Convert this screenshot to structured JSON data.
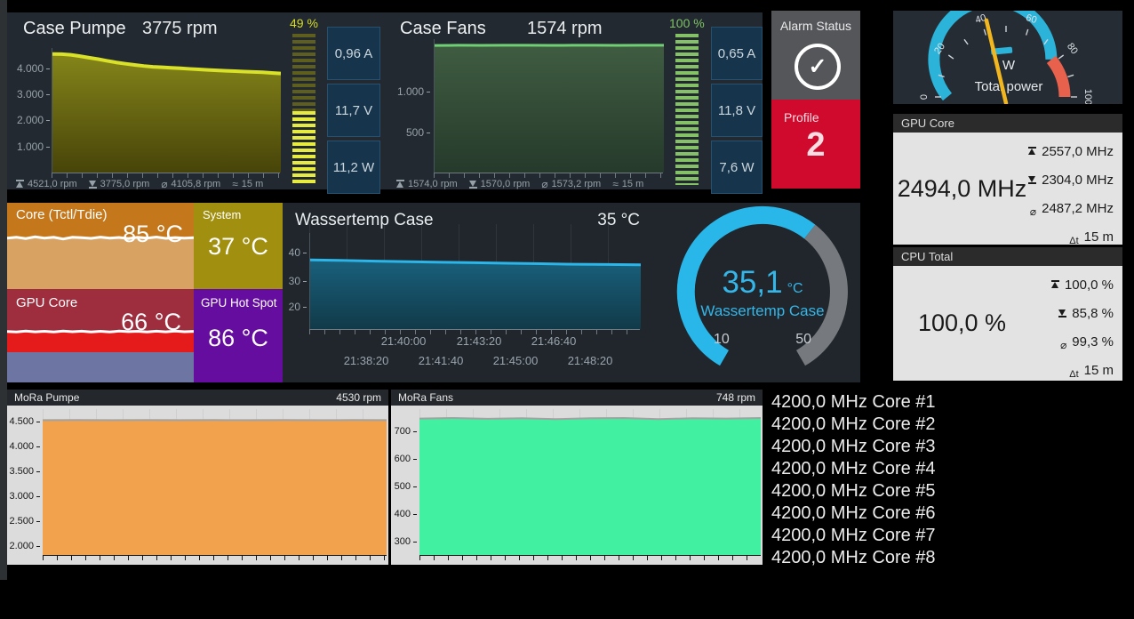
{
  "top": {
    "case_pumpe": {
      "title": "Case Pumpe",
      "value": "3775 rpm",
      "y_ticks": [
        "4.000",
        "3.000",
        "2.000",
        "1.000"
      ],
      "stats": [
        {
          "icon": "max-icon",
          "v": "4521,0 rpm"
        },
        {
          "icon": "min-icon",
          "v": "3775,0 rpm"
        },
        {
          "icon": "avg-icon",
          "v": "4105,8 rpm"
        },
        {
          "icon": "time-icon",
          "v": "15 m"
        }
      ]
    },
    "pumpe_gauge": {
      "label": "49 %",
      "percent": 49,
      "color": "#d6de1f"
    },
    "pumpe_boxes": [
      "0,96 A",
      "11,7 V",
      "11,2 W"
    ],
    "case_fans": {
      "title": "Case Fans",
      "value": "1574 rpm",
      "y_ticks": [
        "1.000",
        "500"
      ],
      "stats": [
        {
          "icon": "max-icon",
          "v": "1574,0 rpm"
        },
        {
          "icon": "min-icon",
          "v": "1570,0 rpm"
        },
        {
          "icon": "avg-icon",
          "v": "1573,2 rpm"
        },
        {
          "icon": "time-icon",
          "v": "15 m"
        }
      ]
    },
    "fans_gauge": {
      "label": "100 %",
      "percent": 100,
      "color": "#7fc465"
    },
    "fans_boxes": [
      "0,65 A",
      "11,8 V",
      "7,6 W"
    ],
    "alarm": {
      "title": "Alarm Status",
      "icon": "check-circle-icon"
    },
    "profile": {
      "label": "Profile",
      "value": "2",
      "color": "#d00a2d"
    }
  },
  "middle": {
    "tiles": {
      "core": {
        "title": "Core (Tctl/Tdie)",
        "value": "85 °C"
      },
      "system": {
        "title": "System",
        "value": "37 °C"
      },
      "gpu": {
        "title": "GPU Core",
        "value": "66 °C"
      },
      "hotspot": {
        "title": "GPU Hot Spot",
        "value": "86 °C"
      }
    },
    "wassertemp": {
      "title": "Wassertemp Case",
      "value": "35 °C",
      "y_ticks": [
        "40",
        "30",
        "20"
      ],
      "x_row1": [
        "21:40:00",
        "21:43:20",
        "21:46:40"
      ],
      "x_row2": [
        "21:38:20",
        "21:41:40",
        "21:45:00",
        "21:48:20"
      ]
    },
    "radial_gauge": {
      "value": "35,1",
      "unit": "°C",
      "label": "Wassertemp Case",
      "min": "10",
      "max": "50",
      "value_num": 35.1,
      "min_num": 10,
      "max_num": 50,
      "arc_color": "#29b7ea",
      "track_color": "#76797d"
    }
  },
  "right": {
    "power_gauge": {
      "unit": "W",
      "label": "Total power",
      "ticks": [
        "0",
        "20",
        "40",
        "60",
        "80",
        "100"
      ],
      "min": 0,
      "max": 100,
      "needle": 42,
      "redline_from": 78,
      "marker": 47,
      "arc_color": "#2bb3d9",
      "redline_color": "#e8614d",
      "needle_color": "#f2b71e"
    },
    "gpu_core": {
      "header": "GPU Core",
      "value": "2494,0 MHz",
      "stats": [
        {
          "icon": "max-icon",
          "v": "2557,0 MHz"
        },
        {
          "icon": "min-icon",
          "v": "2304,0 MHz"
        },
        {
          "icon": "avg-icon",
          "v": "2487,2 MHz"
        },
        {
          "icon": "time-icon",
          "v": "15 m"
        }
      ]
    },
    "cpu_total": {
      "header": "CPU Total",
      "value": "100,0 %",
      "stats": [
        {
          "icon": "max-icon",
          "v": "100,0 %"
        },
        {
          "icon": "min-icon",
          "v": "85,8 %"
        },
        {
          "icon": "avg-icon",
          "v": "99,3 %"
        },
        {
          "icon": "time-icon",
          "v": "15 m"
        }
      ]
    }
  },
  "bottom": {
    "mora_pumpe": {
      "header": "MoRa Pumpe",
      "value": "4530 rpm",
      "y_ticks": [
        "4.500",
        "4.000",
        "3.500",
        "3.000",
        "2.500",
        "2.000"
      ]
    },
    "mora_fans": {
      "header": "MoRa Fans",
      "value": "748 rpm",
      "y_ticks": [
        "700",
        "600",
        "500",
        "400",
        "300"
      ]
    },
    "core_list": [
      "4200,0 MHz Core #1",
      "4200,0 MHz Core #2",
      "4200,0 MHz Core #3",
      "4200,0 MHz Core #4",
      "4200,0 MHz Core #5",
      "4200,0 MHz Core #6",
      "4200,0 MHz Core #7",
      "4200,0 MHz Core #8"
    ]
  },
  "charts": {
    "case_pumpe": {
      "ymin": 0,
      "ymax": 4750,
      "line": "#d9e129",
      "line_width": 4,
      "fill_top": "#85851a",
      "fill_bottom": "#474409",
      "points": [
        [
          0,
          4520
        ],
        [
          4,
          4515
        ],
        [
          8,
          4490
        ],
        [
          12,
          4440
        ],
        [
          16,
          4380
        ],
        [
          20,
          4325
        ],
        [
          24,
          4260
        ],
        [
          28,
          4200
        ],
        [
          32,
          4150
        ],
        [
          36,
          4105
        ],
        [
          40,
          4065
        ],
        [
          44,
          4035
        ],
        [
          48,
          4015
        ],
        [
          52,
          3995
        ],
        [
          56,
          3978
        ],
        [
          60,
          3955
        ],
        [
          64,
          3935
        ],
        [
          68,
          3915
        ],
        [
          72,
          3898
        ],
        [
          76,
          3882
        ],
        [
          80,
          3868
        ],
        [
          84,
          3852
        ],
        [
          88,
          3840
        ],
        [
          92,
          3825
        ],
        [
          96,
          3800
        ],
        [
          100,
          3780
        ]
      ]
    },
    "case_fans": {
      "ymin": 0,
      "ymax": 1650,
      "line": "#70cf74",
      "line_width": 3,
      "fill_top": "#3f5c41",
      "fill_bottom": "#263a2b",
      "points": [
        [
          0,
          1572
        ],
        [
          10,
          1574
        ],
        [
          20,
          1573
        ],
        [
          30,
          1574
        ],
        [
          40,
          1574
        ],
        [
          50,
          1573
        ],
        [
          60,
          1574
        ],
        [
          70,
          1574
        ],
        [
          80,
          1573
        ],
        [
          90,
          1574
        ],
        [
          100,
          1574
        ]
      ]
    },
    "wassertemp": {
      "ymin": 10,
      "ymax": 47.5,
      "line": "#2cb5e8",
      "line_width": 3,
      "fill_top": "#19607c",
      "fill_bottom": "#113a49",
      "points": [
        [
          0,
          37
        ],
        [
          10,
          36.8
        ],
        [
          20,
          36.5
        ],
        [
          30,
          36.3
        ],
        [
          40,
          36.1
        ],
        [
          50,
          35.9
        ],
        [
          60,
          35.7
        ],
        [
          70,
          35.5
        ],
        [
          80,
          35.3
        ],
        [
          90,
          35.2
        ],
        [
          100,
          35.1
        ]
      ]
    },
    "core_wave": {
      "ymin": 0,
      "ymax": 100,
      "line": "#ffffff",
      "line_width": 3,
      "fill_top": "#d8a262",
      "fill_bottom": "#d8a262",
      "points": [
        [
          0,
          59
        ],
        [
          5,
          60
        ],
        [
          10,
          58.5
        ],
        [
          15,
          60.5
        ],
        [
          20,
          59
        ],
        [
          25,
          60
        ],
        [
          30,
          58
        ],
        [
          35,
          60
        ],
        [
          40,
          59.5
        ],
        [
          45,
          58.8
        ],
        [
          50,
          60.2
        ],
        [
          55,
          59
        ],
        [
          60,
          59.8
        ],
        [
          65,
          58.5
        ],
        [
          70,
          60
        ],
        [
          75,
          59
        ],
        [
          80,
          60.3
        ],
        [
          85,
          58.8
        ],
        [
          90,
          59.6
        ],
        [
          95,
          59
        ],
        [
          100,
          59.5
        ]
      ]
    },
    "gpu_wave": {
      "ymin": 0,
      "ymax": 100,
      "line": "#ffffff",
      "line_width": 3,
      "fill_top": "#e51a1a",
      "fill_bottom": "#e51a1a",
      "points": [
        [
          0,
          54.5
        ],
        [
          5,
          54
        ],
        [
          10,
          55
        ],
        [
          15,
          54.2
        ],
        [
          20,
          54.8
        ],
        [
          25,
          54
        ],
        [
          30,
          55
        ],
        [
          35,
          54.3
        ],
        [
          40,
          54.9
        ],
        [
          45,
          54.1
        ],
        [
          50,
          54.7
        ],
        [
          55,
          54
        ],
        [
          60,
          55
        ],
        [
          65,
          54.4
        ],
        [
          70,
          54.8
        ],
        [
          75,
          54
        ],
        [
          80,
          54.9
        ],
        [
          85,
          54.2
        ],
        [
          90,
          55
        ],
        [
          95,
          54.3
        ],
        [
          100,
          54.7
        ]
      ]
    },
    "mora_pumpe": {
      "ymin": 1800,
      "ymax": 4750,
      "line": "#a2a2a2",
      "line_width": 2,
      "fill_top": "#f2a14c",
      "fill_bottom": "#f2a14c",
      "points": [
        [
          0,
          4528
        ],
        [
          10,
          4530
        ],
        [
          20,
          4529
        ],
        [
          30,
          4530
        ],
        [
          40,
          4528
        ],
        [
          50,
          4530
        ],
        [
          60,
          4529
        ],
        [
          70,
          4530
        ],
        [
          80,
          4528
        ],
        [
          90,
          4530
        ],
        [
          100,
          4529
        ]
      ]
    },
    "mora_fans": {
      "ymin": 250,
      "ymax": 780,
      "line": "#a2a2a2",
      "line_width": 2,
      "fill_top": "#41f0a0",
      "fill_bottom": "#41f0a0",
      "points": [
        [
          0,
          746
        ],
        [
          10,
          748
        ],
        [
          20,
          745
        ],
        [
          30,
          747
        ],
        [
          40,
          744
        ],
        [
          50,
          747
        ],
        [
          60,
          748
        ],
        [
          70,
          744
        ],
        [
          80,
          747
        ],
        [
          90,
          746
        ],
        [
          100,
          748
        ]
      ]
    }
  }
}
